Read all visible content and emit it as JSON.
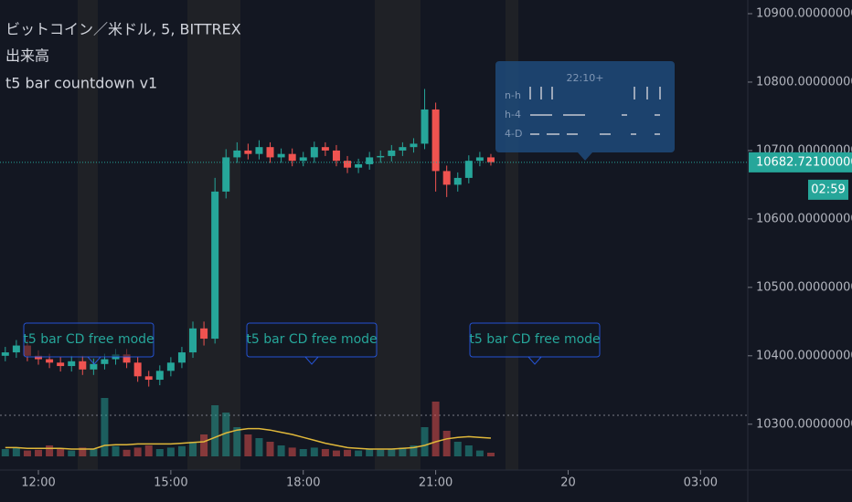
{
  "chart_data": {
    "type": "candlestick",
    "title": "ビットコイン／米ドル, 5, BITTREX",
    "indicators": [
      "出来高",
      "t5 bar countdown v1"
    ],
    "annotations": [
      "t5 bar CD free mode",
      "t5 bar CD free mode",
      "t5 bar CD free mode"
    ],
    "panel": {
      "title": "22:10+",
      "rows": [
        "n-h",
        "h-4",
        "4-D"
      ]
    },
    "last_price": {
      "value": 10682.721,
      "label": "10682.72100000"
    },
    "countdown": "02:59",
    "up_color": "#26a69a",
    "down_color": "#ef5350",
    "x": [
      11.25,
      11.5,
      11.75,
      12,
      12.25,
      12.5,
      12.75,
      13,
      13.25,
      13.5,
      13.75,
      14,
      14.25,
      14.5,
      14.75,
      15,
      15.25,
      15.5,
      15.75,
      16,
      16.25,
      16.5,
      16.75,
      17,
      17.25,
      17.5,
      17.75,
      18,
      18.25,
      18.5,
      18.75,
      19,
      19.25,
      19.5,
      19.75,
      20,
      20.25,
      20.5,
      20.75,
      21,
      21.25,
      21.5,
      21.75,
      22,
      22.25
    ],
    "open": [
      10400,
      10405,
      10415,
      10400,
      10395,
      10390,
      10385,
      10392,
      10380,
      10388,
      10395,
      10402,
      10390,
      10370,
      10365,
      10378,
      10390,
      10405,
      10440,
      10425,
      10640,
      10690,
      10700,
      10695,
      10705,
      10690,
      10695,
      10685,
      10690,
      10705,
      10700,
      10685,
      10675,
      10680,
      10690,
      10692,
      10700,
      10705,
      10710,
      10760,
      10670,
      10650,
      10660,
      10685,
      10690
    ],
    "high": [
      10413,
      10423,
      10423,
      10408,
      10403,
      10398,
      10400,
      10400,
      10396,
      10403,
      10410,
      10410,
      10398,
      10378,
      10386,
      10398,
      10413,
      10450,
      10450,
      10660,
      10702,
      10712,
      10710,
      10715,
      10712,
      10703,
      10703,
      10698,
      10713,
      10712,
      10708,
      10692,
      10688,
      10698,
      10700,
      10708,
      10712,
      10718,
      10790,
      10770,
      10678,
      10668,
      10693,
      10698,
      10695
    ],
    "low": [
      10392,
      10397,
      10392,
      10387,
      10382,
      10377,
      10377,
      10372,
      10372,
      10380,
      10387,
      10382,
      10362,
      10355,
      10357,
      10370,
      10382,
      10397,
      10415,
      10418,
      10630,
      10682,
      10687,
      10687,
      10682,
      10682,
      10677,
      10677,
      10682,
      10692,
      10677,
      10667,
      10667,
      10672,
      10682,
      10684,
      10692,
      10697,
      10702,
      10640,
      10632,
      10640,
      10652,
      10677,
      10678
    ],
    "close": [
      10405,
      10415,
      10400,
      10395,
      10390,
      10385,
      10392,
      10380,
      10388,
      10395,
      10402,
      10390,
      10370,
      10365,
      10378,
      10390,
      10405,
      10440,
      10425,
      10640,
      10690,
      10700,
      10695,
      10705,
      10690,
      10695,
      10685,
      10690,
      10705,
      10700,
      10685,
      10675,
      10680,
      10690,
      10692,
      10700,
      10705,
      10710,
      10760,
      10670,
      10650,
      10660,
      10685,
      10690,
      10683
    ],
    "volume": [
      10,
      12,
      8,
      9,
      15,
      10,
      8,
      12,
      10,
      80,
      14,
      9,
      12,
      15,
      10,
      12,
      14,
      20,
      30,
      70,
      60,
      40,
      30,
      25,
      20,
      15,
      12,
      10,
      12,
      10,
      8,
      9,
      8,
      10,
      9,
      10,
      12,
      15,
      40,
      75,
      35,
      20,
      15,
      8,
      5
    ],
    "volume_ma": {
      "color": "#e0b83a",
      "values": [
        12,
        12,
        11,
        11,
        11,
        11,
        10,
        10,
        10,
        15,
        16,
        16,
        17,
        17,
        17,
        17,
        18,
        19,
        20,
        26,
        32,
        36,
        38,
        38,
        36,
        33,
        30,
        26,
        22,
        18,
        15,
        12,
        11,
        10,
        10,
        10,
        11,
        12,
        15,
        20,
        24,
        26,
        27,
        26,
        25
      ]
    },
    "xlim": [
      11.13,
      28.07
    ],
    "xticks": [
      {
        "value": 12,
        "label": "12:00"
      },
      {
        "value": 15,
        "label": "15:00"
      },
      {
        "value": 18,
        "label": "18:00"
      },
      {
        "value": 21,
        "label": "21:00"
      },
      {
        "value": 24,
        "label": "20"
      },
      {
        "value": 27,
        "label": "03:00"
      }
    ],
    "ylim": [
      10233,
      10920
    ],
    "yticks": [
      {
        "value": 10300,
        "label": "10300.00000000"
      },
      {
        "value": 10400,
        "label": "10400.00000000"
      },
      {
        "value": 10500,
        "label": "10500.00000000"
      },
      {
        "value": 10600,
        "label": "10600.00000000"
      },
      {
        "value": 10700,
        "label": "10700.00000000"
      },
      {
        "value": 10800,
        "label": "10800.00000000"
      },
      {
        "value": 10900,
        "label": "10900.00000000"
      }
    ]
  }
}
